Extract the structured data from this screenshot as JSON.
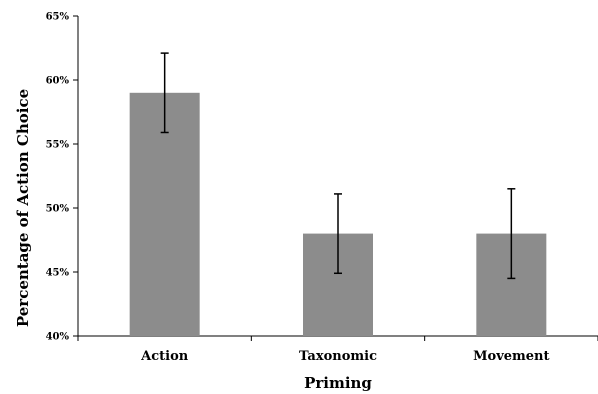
{
  "chart_data": {
    "type": "bar",
    "title": "",
    "xlabel": "Priming",
    "ylabel": "Percentage of Action Choice",
    "categories": [
      "Action",
      "Taxonomic",
      "Movement"
    ],
    "values": [
      59,
      48,
      48
    ],
    "error_bars": [
      {
        "low": 55.9,
        "high": 62.1
      },
      {
        "low": 44.9,
        "high": 51.1
      },
      {
        "low": 44.5,
        "high": 51.5
      }
    ],
    "ylim": [
      40,
      65
    ],
    "yticks": [
      40,
      45,
      50,
      55,
      60,
      65
    ],
    "ytick_labels": [
      "40%",
      "45%",
      "50%",
      "55%",
      "60%",
      "65%"
    ],
    "bar_color": "#8c8c8c",
    "grid": false,
    "legend": "none"
  }
}
